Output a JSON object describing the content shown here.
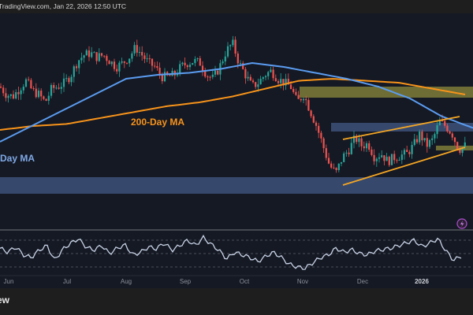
{
  "header": {
    "source_text": "TradingView.com, Jan 22, 2026 12:50 UTC"
  },
  "footer": {
    "brand_text": "ew"
  },
  "colors": {
    "background": "#151924",
    "up_candle": "#26a69a",
    "down_candle": "#ef5350",
    "ma_50": "#5b9cf0",
    "ma_200": "#f7931a",
    "trendline": "#f5a623",
    "supply_zone": "#8c8a3c",
    "demand_zone": "#3f5580",
    "rsi_line": "#c9d3e6",
    "alert_icon": "#b04fd0"
  },
  "icons": {
    "alert": "lightning-bolt-icon"
  },
  "chart_data": {
    "type": "candlestick",
    "title": "",
    "x_ticks": [
      "Jun",
      "Jul",
      "Aug",
      "Sep",
      "Oct",
      "Nov",
      "Dec",
      "2026"
    ],
    "x_tick_bold": [
      "2026"
    ],
    "price_axis": "hidden",
    "price_close_index": [
      72,
      68,
      67,
      71,
      75,
      70,
      68,
      64,
      71,
      72,
      74,
      78,
      85,
      88,
      89,
      87,
      88,
      85,
      82,
      84,
      87,
      92,
      88,
      84,
      82,
      77,
      77,
      78,
      82,
      84,
      85,
      84,
      78,
      76,
      82,
      90,
      94,
      84,
      78,
      72,
      74,
      78,
      80,
      76,
      74,
      72,
      64,
      68,
      60,
      52,
      42,
      32,
      28,
      36,
      40,
      46,
      42,
      43,
      36,
      38,
      34,
      36,
      37,
      38,
      42,
      48,
      42,
      45,
      54,
      52,
      48,
      40,
      42
    ],
    "ma_labels": [
      {
        "text": "200-Day MA",
        "series": "ma_200"
      },
      {
        "text": "-Day MA",
        "series": "ma_50"
      }
    ],
    "ma_50_index": [
      44,
      52,
      60,
      68,
      76,
      78,
      79,
      81,
      84,
      82,
      79,
      76,
      72,
      66,
      57,
      51
    ],
    "ma_200_index": [
      50,
      52,
      53,
      56,
      59,
      62,
      64,
      67,
      71,
      75,
      76,
      75,
      74,
      71,
      68
    ],
    "zones": [
      {
        "kind": "supply",
        "color": "yellow",
        "from": "Nov",
        "to": "end"
      },
      {
        "kind": "resistance",
        "color": "blue",
        "from": "Nov (late)",
        "to": "end"
      },
      {
        "kind": "support",
        "color": "blue",
        "from": "start",
        "to": "end"
      },
      {
        "kind": "retest",
        "color": "yellow",
        "from": "Jan",
        "to": "end"
      }
    ],
    "pattern": "rising wedge",
    "rsi": {
      "levels": [
        70,
        50,
        30
      ],
      "values": [
        58,
        52,
        60,
        48,
        44,
        55,
        62,
        40,
        56,
        65,
        72,
        60,
        55,
        62,
        50,
        58,
        63,
        48,
        52,
        60,
        57,
        66,
        55,
        62,
        70,
        62,
        74,
        64,
        55,
        42,
        52,
        48,
        44,
        38,
        46,
        52,
        44,
        34,
        30,
        28,
        36,
        44,
        48,
        58,
        52,
        56,
        50,
        48,
        54,
        56,
        58,
        62,
        66,
        70,
        60,
        66,
        72,
        55,
        40,
        46
      ]
    }
  }
}
